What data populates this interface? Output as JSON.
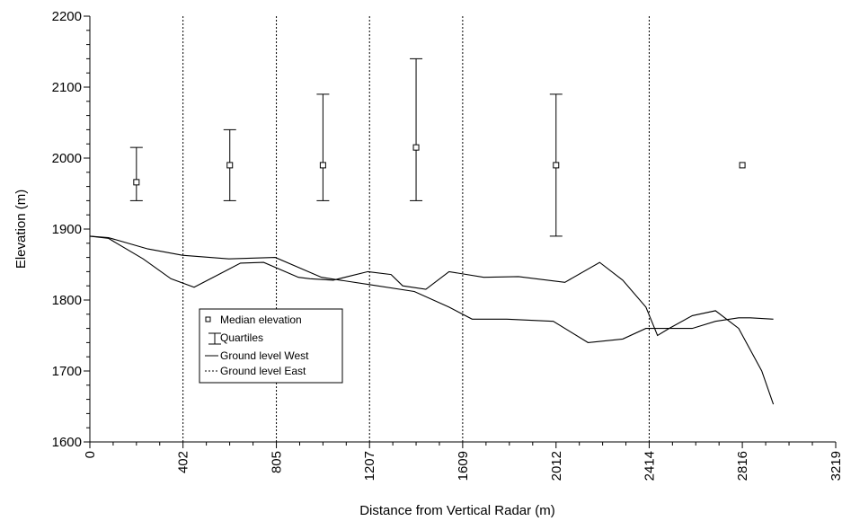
{
  "chart_data": {
    "type": "line",
    "title": "",
    "xlabel": "Distance from Vertical Radar (m)",
    "ylabel": "Elevation (m)",
    "xlim": [
      0,
      3219
    ],
    "ylim": [
      1600,
      2200
    ],
    "x_ticks": [
      "0",
      "402",
      "805",
      "1207",
      "1609",
      "2012",
      "2414",
      "2816",
      "3219"
    ],
    "y_ticks": [
      "1600",
      "1700",
      "1800",
      "1900",
      "2000",
      "2100",
      "2200"
    ],
    "grid": false,
    "legend_position": "lower-left",
    "legend": [
      {
        "label": "Median elevation",
        "symbol": "square"
      },
      {
        "label": "Quartiles",
        "symbol": "errorbar"
      },
      {
        "label": "Ground level West",
        "symbol": "solid"
      },
      {
        "label": "Ground level East",
        "symbol": "dashed"
      }
    ],
    "medians": [
      {
        "x": 201,
        "median": 1966,
        "q1": 1940,
        "q3": 2015
      },
      {
        "x": 604,
        "median": 1990,
        "q1": 1940,
        "q3": 2040
      },
      {
        "x": 1006,
        "median": 1990,
        "q1": 1940,
        "q3": 2090
      },
      {
        "x": 1408,
        "median": 2015,
        "q1": 1940,
        "q3": 2140
      },
      {
        "x": 2012,
        "median": 1990,
        "q1": 1890,
        "q3": 2090
      },
      {
        "x": 2816,
        "median": 1990,
        "q1": null,
        "q3": null
      }
    ],
    "series": [
      {
        "name": "Ground level West",
        "x": [
          0,
          80,
          250,
          400,
          600,
          800,
          1000,
          1200,
          1400,
          1550,
          1650,
          1800,
          2000,
          2150,
          2300,
          2400,
          2500,
          2600,
          2700,
          2800,
          2850,
          2950
        ],
        "y": [
          1890,
          1888,
          1872,
          1863,
          1858,
          1860,
          1832,
          1822,
          1812,
          1790,
          1773,
          1773,
          1770,
          1740,
          1745,
          1760,
          1760,
          1760,
          1770,
          1775,
          1775,
          1773
        ]
      },
      {
        "name": "Ground level East",
        "x": [
          0,
          80,
          230,
          350,
          450,
          550,
          650,
          750,
          900,
          950,
          1050,
          1200,
          1300,
          1350,
          1450,
          1550,
          1700,
          1850,
          2050,
          2200,
          2300,
          2400,
          2450,
          2500,
          2600,
          2700,
          2800,
          2900,
          2950
        ],
        "y": [
          1890,
          1887,
          1858,
          1830,
          1818,
          1835,
          1852,
          1853,
          1832,
          1830,
          1828,
          1840,
          1836,
          1820,
          1815,
          1840,
          1832,
          1833,
          1825,
          1853,
          1828,
          1790,
          1750,
          1760,
          1778,
          1785,
          1760,
          1700,
          1653
        ]
      }
    ],
    "vertical_lines_x": [
      402,
      805,
      1207,
      1609,
      2414
    ]
  }
}
